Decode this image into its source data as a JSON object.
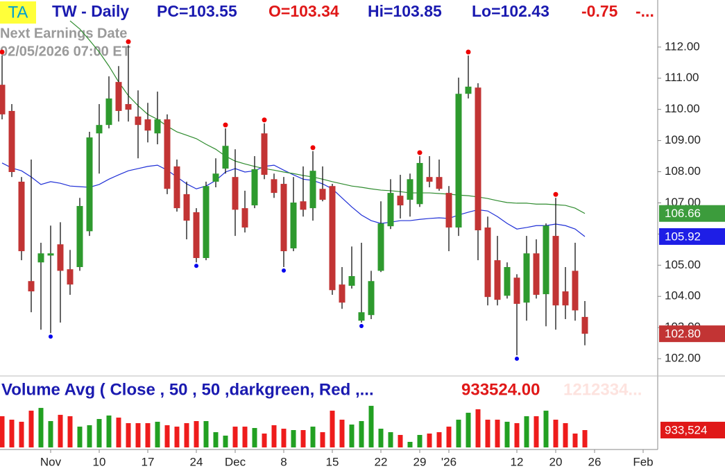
{
  "header": {
    "symbol": "TA",
    "title": "TW - Daily",
    "pc": "PC=103.55",
    "open": "O=103.34",
    "high": "Hi=103.85",
    "low": "Lo=102.43",
    "change": "-0.75",
    "more": "-...",
    "earnings_label": "Next Earnings Date",
    "earnings_date": "02/05/2026  07:00 ET"
  },
  "chart_data": [
    {
      "type": "candlestick",
      "categories": [
        null,
        null,
        null,
        null,
        null,
        "Nov",
        null,
        null,
        null,
        null,
        "10",
        null,
        null,
        null,
        null,
        "17",
        null,
        null,
        null,
        null,
        "24",
        null,
        null,
        null,
        "Dec",
        null,
        null,
        null,
        null,
        "8",
        null,
        null,
        null,
        null,
        "15",
        null,
        null,
        null,
        null,
        "22",
        null,
        null,
        null,
        "29",
        null,
        null,
        "'26",
        null,
        null,
        null,
        null,
        null,
        null,
        "12",
        null,
        null,
        null,
        "20",
        null,
        null,
        null,
        "26",
        null,
        null,
        null,
        null,
        "Feb"
      ],
      "open": [
        110.79,
        109.95,
        107.68,
        104.49,
        105.09,
        105.31,
        105.67,
        104.87,
        104.94,
        106.09,
        109.23,
        109.5,
        110.88,
        110.17,
        109.77,
        109.68,
        109.23,
        109.68,
        108.17,
        107.28,
        106.7,
        105.23,
        107.68,
        108.1,
        107.83,
        106.83,
        106.92,
        109.23,
        107.76,
        107.61,
        105.54,
        107.05,
        106.83,
        107.45,
        107.54,
        104.38,
        104.34,
        103.22,
        103.4,
        104.82,
        106.25,
        107.23,
        107.1,
        106.96,
        107.83,
        107.83,
        107.32,
        106.21,
        110.5,
        110.7,
        106.21,
        105.16,
        104.02,
        104.6,
        103.8,
        105.38,
        104.07,
        105.94,
        104.16,
        104.82,
        103.34,
        null,
        null,
        null,
        null,
        null,
        null
      ],
      "high": [
        111.73,
        110.17,
        107.83,
        108.39,
        105.72,
        106.27,
        106.38,
        105.49,
        107.16,
        109.28,
        110.17,
        111.06,
        111.39,
        112.06,
        110.61,
        110.21,
        110.57,
        109.84,
        108.39,
        107.68,
        106.83,
        107.68,
        108.43,
        109.39,
        108.72,
        107.39,
        108.5,
        109.55,
        107.94,
        107.83,
        107.83,
        108.17,
        108.66,
        108.17,
        107.61,
        104.94,
        105.6,
        105.72,
        104.82,
        107.05,
        107.76,
        107.9,
        107.94,
        108.5,
        108.5,
        108.39,
        107.54,
        111.02,
        111.73,
        110.84,
        106.56,
        105.94,
        105.09,
        104.71,
        105.94,
        105.83,
        106.34,
        107.16,
        104.94,
        105.72,
        103.85,
        null,
        null,
        null,
        null,
        null,
        null
      ],
      "low": [
        109.68,
        107.83,
        105.16,
        103.49,
        102.93,
        102.82,
        103.16,
        104.05,
        104.82,
        105.94,
        107.94,
        109.39,
        109.61,
        109.61,
        108.43,
        108.94,
        108.88,
        107.28,
        106.72,
        105.83,
        105.09,
        105.16,
        107.5,
        107.94,
        105.94,
        106.05,
        106.83,
        107.76,
        107.16,
        104.94,
        105.45,
        106.56,
        106.43,
        107.05,
        104.05,
        103.6,
        104.25,
        103.16,
        103.27,
        104.78,
        106.16,
        106.5,
        106.56,
        106.87,
        107.5,
        107.39,
        105.45,
        105.94,
        110.35,
        105.16,
        103.71,
        103.71,
        103.93,
        102.11,
        103.22,
        103.93,
        103.04,
        102.93,
        103.27,
        103.22,
        102.43,
        null,
        null,
        null,
        null,
        null,
        null
      ],
      "close": [
        109.84,
        107.99,
        105.45,
        104.16,
        105.38,
        105.38,
        104.82,
        104.38,
        106.9,
        109.1,
        109.5,
        110.35,
        109.95,
        109.99,
        109.5,
        109.32,
        109.68,
        107.45,
        106.83,
        106.43,
        105.23,
        107.54,
        107.94,
        108.83,
        106.78,
        106.21,
        108.08,
        107.9,
        107.32,
        105.45,
        107.01,
        106.78,
        108.03,
        107.1,
        104.2,
        103.8,
        104.65,
        103.49,
        104.49,
        106.34,
        107.32,
        106.92,
        107.76,
        108.28,
        107.68,
        107.45,
        106.21,
        110.5,
        110.73,
        106.12,
        103.98,
        103.89,
        104.94,
        103.76,
        105.38,
        104.05,
        106.27,
        103.71,
        103.71,
        103.55,
        102.8,
        null,
        null,
        null,
        null,
        null,
        null
      ],
      "pivots": [
        "high",
        null,
        null,
        null,
        null,
        "low",
        null,
        null,
        null,
        null,
        null,
        null,
        null,
        "high",
        null,
        null,
        null,
        null,
        null,
        null,
        "low",
        null,
        null,
        "high",
        null,
        null,
        null,
        "high",
        null,
        "low",
        null,
        null,
        "high",
        null,
        null,
        null,
        null,
        "low",
        null,
        null,
        null,
        null,
        null,
        "high",
        null,
        null,
        null,
        null,
        "high",
        null,
        null,
        null,
        null,
        "low",
        null,
        null,
        null,
        "high",
        null,
        null,
        null,
        null,
        null,
        null,
        null,
        null,
        null
      ],
      "up_color": "#2e9a2e",
      "down_color": "#c23434",
      "pivot_high_color": "#ee0000",
      "pivot_low_color": "#0000ee",
      "lines": [
        {
          "color": "#1f2fd6",
          "values": [
            108.28,
            108.12,
            108.03,
            107.83,
            107.59,
            107.68,
            107.63,
            107.54,
            107.52,
            107.5,
            107.59,
            107.76,
            107.9,
            108.03,
            108.1,
            108.17,
            108.21,
            108.05,
            107.83,
            107.61,
            107.45,
            107.54,
            107.72,
            107.99,
            108.1,
            107.99,
            108.03,
            108.17,
            108.21,
            108.05,
            107.9,
            107.76,
            107.72,
            107.61,
            107.45,
            107.16,
            106.87,
            106.61,
            106.43,
            106.34,
            106.38,
            106.43,
            106.43,
            106.47,
            106.5,
            106.52,
            106.5,
            106.61,
            106.7,
            106.78,
            106.74,
            106.56,
            106.34,
            106.16,
            106.21,
            106.27,
            106.27,
            106.32,
            106.27,
            106.16,
            105.92,
            null,
            null,
            null,
            null,
            null,
            null
          ]
        },
        {
          "color": "#2e8b2e",
          "values": [
            null,
            null,
            null,
            null,
            null,
            null,
            null,
            112.84,
            112.58,
            112.22,
            111.84,
            111.39,
            110.88,
            110.44,
            110.12,
            109.84,
            109.68,
            109.46,
            109.28,
            109.17,
            109.06,
            108.88,
            108.72,
            108.5,
            108.34,
            108.25,
            108.17,
            108.1,
            108.05,
            107.99,
            107.94,
            107.88,
            107.83,
            107.76,
            107.68,
            107.61,
            107.54,
            107.5,
            107.45,
            107.41,
            107.39,
            107.36,
            107.32,
            107.32,
            107.32,
            107.3,
            107.28,
            107.25,
            107.23,
            107.19,
            107.14,
            107.07,
            107.01,
            106.99,
            106.99,
            106.96,
            106.96,
            106.94,
            106.92,
            106.83,
            106.66,
            null,
            null,
            null,
            null,
            null,
            null
          ]
        }
      ],
      "last_labels": [
        {
          "value": 106.66,
          "label": "106.66",
          "color": "#3c9c3c"
        },
        {
          "value": 105.92,
          "label": "105.92",
          "color": "#1e1ee6"
        },
        {
          "value": 102.8,
          "label": "102.80",
          "color": "#c23434"
        }
      ],
      "ylim": [
        101.49,
        113.51
      ],
      "yticks": [
        {
          "value": 102,
          "label": "102.00"
        },
        {
          "value": 103,
          "label": "103.00"
        },
        {
          "value": 104,
          "label": "104.00"
        },
        {
          "value": 105,
          "label": "105.00"
        },
        {
          "value": 106,
          "label": "106.00"
        },
        {
          "value": 107,
          "label": "107.00"
        },
        {
          "value": 108,
          "label": "108.00"
        },
        {
          "value": 109,
          "label": "109.00"
        },
        {
          "value": 110,
          "label": "110.00"
        },
        {
          "value": 111,
          "label": "111.00"
        },
        {
          "value": 112,
          "label": "112.00"
        }
      ]
    },
    {
      "type": "bar",
      "title": "Volume Avg ( Close , 50 , 50 ,darkgreen, Red ,...",
      "value_text": "933524.00",
      "avg_text": "1212334...",
      "values": [
        1680000,
        1494000,
        1382000,
        1979000,
        2128000,
        1419000,
        1755000,
        1680000,
        1120000,
        1195000,
        1531000,
        1718000,
        1606000,
        1307000,
        1307000,
        1307000,
        1382000,
        1195000,
        1120000,
        1307000,
        1419000,
        1419000,
        821000,
        635000,
        1120000,
        1120000,
        1046000,
        747000,
        1195000,
        1008000,
        934000,
        934000,
        1120000,
        821000,
        1979000,
        1494000,
        1232000,
        1419000,
        2240000,
        1008000,
        821000,
        672000,
        299000,
        672000,
        747000,
        821000,
        1120000,
        1494000,
        1867000,
        2054000,
        1494000,
        1494000,
        1382000,
        1307000,
        1680000,
        1680000,
        1979000,
        1494000,
        1307000,
        747000,
        933524,
        null,
        null,
        null,
        null,
        null,
        null
      ],
      "ylim": [
        0,
        3550000
      ],
      "last_label": {
        "value": 933524,
        "label": "933,524",
        "color": "#e01818"
      }
    }
  ]
}
